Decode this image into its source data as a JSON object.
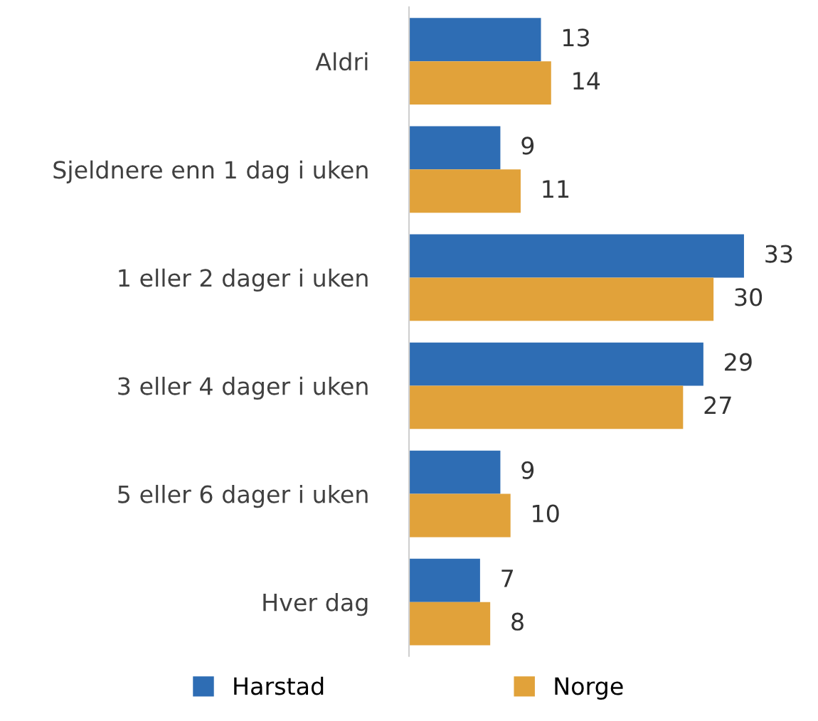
{
  "chart_data": {
    "type": "bar",
    "orientation": "horizontal",
    "categories": [
      "Aldri",
      "Sjeldnere enn 1 dag i uken",
      "1 eller 2 dager i uken",
      "3 eller 4 dager i uken",
      "5 eller 6 dager i uken",
      "Hver dag"
    ],
    "series": [
      {
        "name": "Harstad",
        "color": "#2e6db4",
        "values": [
          13,
          9,
          33,
          29,
          9,
          7
        ]
      },
      {
        "name": "Norge",
        "color": "#e1a23a",
        "values": [
          14,
          11,
          30,
          27,
          10,
          8
        ]
      }
    ],
    "tick_labels": "y",
    "data_labels": true,
    "legend": "bottom",
    "grid": false
  }
}
